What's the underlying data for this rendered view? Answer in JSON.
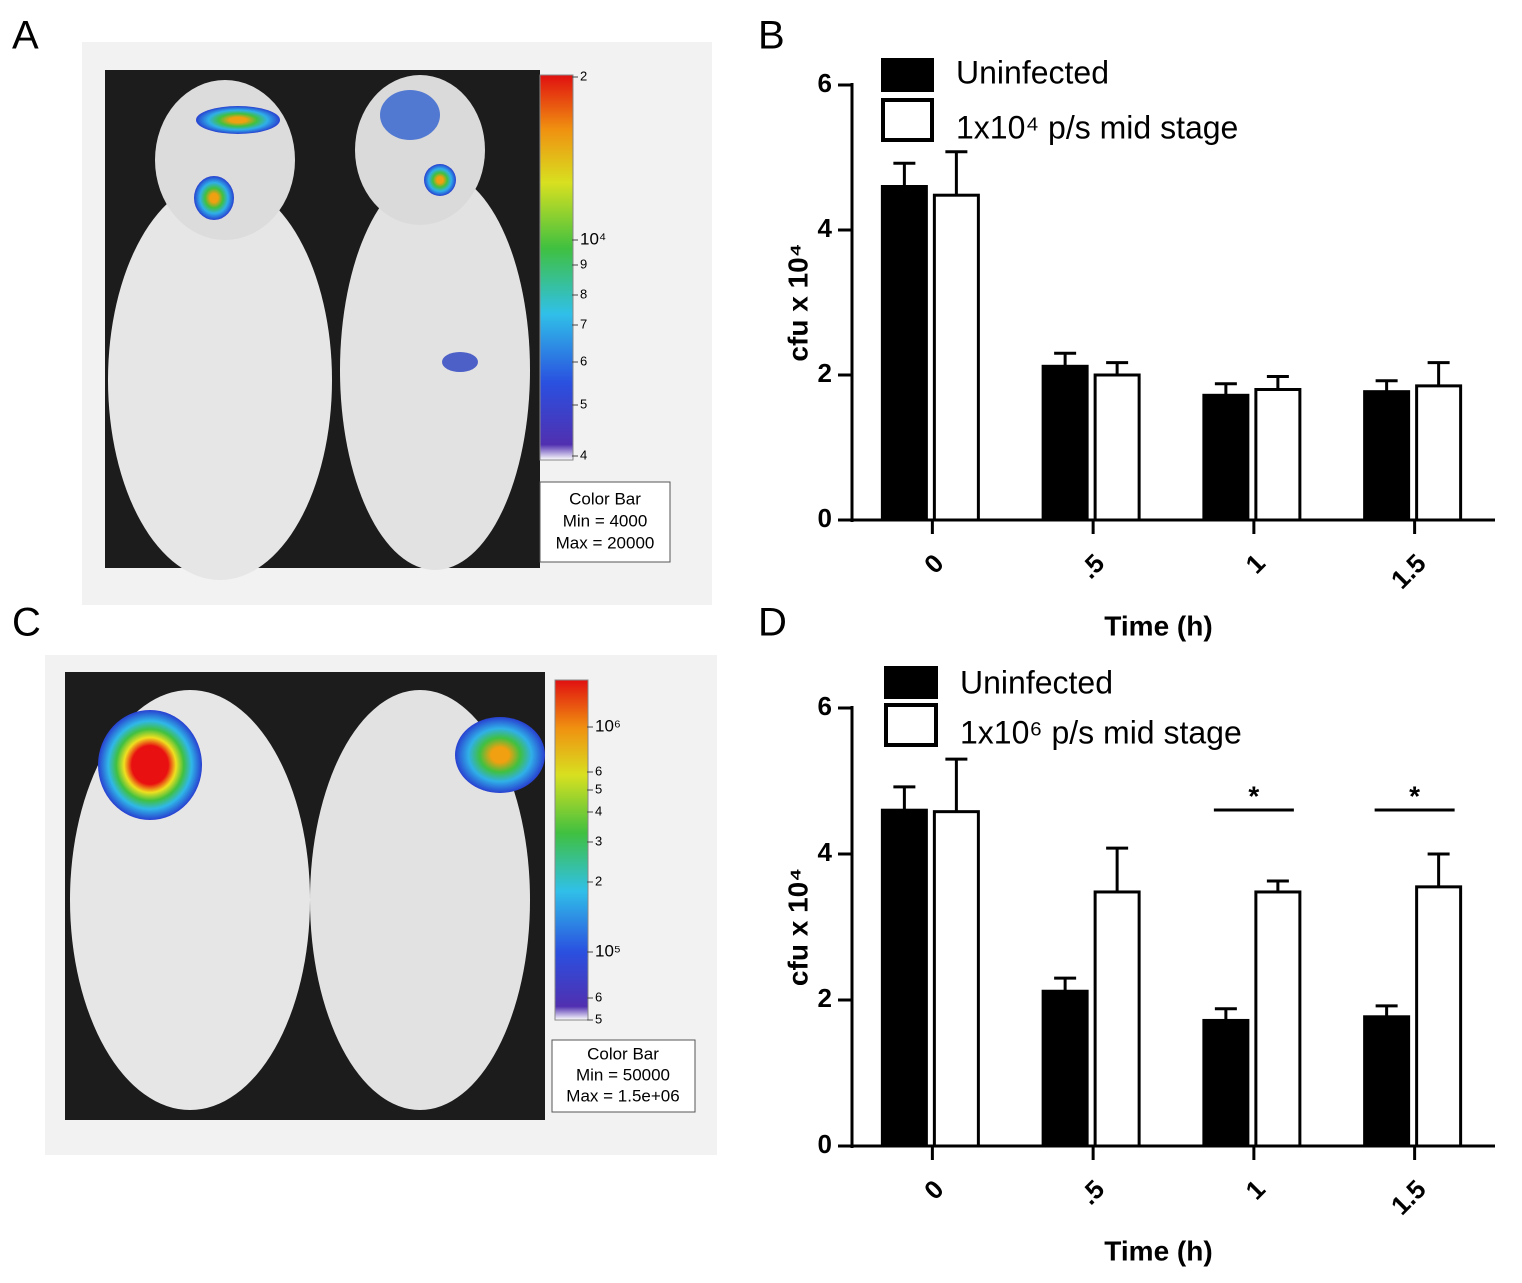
{
  "figure": {
    "panel_labels": [
      "A",
      "B",
      "C",
      "D"
    ],
    "panel_a": {
      "colorbar_labels": [
        "2",
        "10⁴",
        "9",
        "8",
        "7",
        "6",
        "5",
        "4"
      ],
      "box": [
        "Color Bar",
        "Min = 4000",
        "Max = 20000"
      ]
    },
    "panel_c": {
      "colorbar_labels": [
        "10⁶",
        "6",
        "5",
        "4",
        "3",
        "2",
        "10⁵",
        "6",
        "5"
      ],
      "box": [
        "Color Bar",
        "Min = 50000",
        "Max = 1.5e+06"
      ]
    }
  },
  "chart_data": [
    {
      "type": "bar",
      "x_label": "Time (h)",
      "y_label": "cfu x 10⁴",
      "categories": [
        "0",
        ".5",
        "1",
        "1.5"
      ],
      "series": [
        {
          "name": "Uninfected",
          "color": "#000000",
          "values": [
            4.6,
            2.12,
            1.72,
            1.77
          ],
          "errors": [
            0.32,
            0.18,
            0.16,
            0.15
          ]
        },
        {
          "name": "1x10⁴ p/s mid stage",
          "color": "#ffffff",
          "values": [
            4.48,
            2.0,
            1.8,
            1.85
          ],
          "errors": [
            0.6,
            0.17,
            0.18,
            0.32
          ]
        }
      ],
      "ylim": [
        0,
        6
      ],
      "yticks": [
        0,
        2,
        4,
        6
      ]
    },
    {
      "type": "bar",
      "x_label": "Time (h)",
      "y_label": "cfu x 10⁴",
      "categories": [
        "0",
        ".5",
        "1",
        "1.5"
      ],
      "series": [
        {
          "name": "Uninfected",
          "color": "#000000",
          "values": [
            4.6,
            2.12,
            1.72,
            1.77
          ],
          "errors": [
            0.32,
            0.18,
            0.16,
            0.15
          ]
        },
        {
          "name": "1x10⁶ p/s mid stage",
          "color": "#ffffff",
          "values": [
            4.58,
            3.48,
            3.48,
            3.55
          ],
          "errors": [
            0.72,
            0.6,
            0.15,
            0.45
          ]
        }
      ],
      "ylim": [
        0,
        6
      ],
      "yticks": [
        0,
        2,
        4,
        6
      ],
      "annotations": [
        {
          "text": "*",
          "category": "1"
        },
        {
          "text": "*",
          "category": "1.5"
        }
      ]
    }
  ]
}
